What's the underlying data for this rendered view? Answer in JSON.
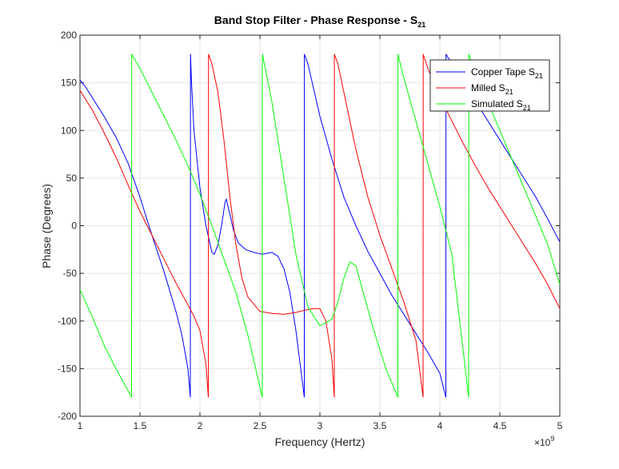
{
  "chart_data": {
    "type": "line",
    "title": "Band Stop Filter - Phase Response - S",
    "title_subscript": "21",
    "xlabel": "Frequency (Hertz)",
    "ylabel": "Phase (Degrees)",
    "x_exponent_base": "×10",
    "x_exponent_power": "9",
    "xlim": [
      1,
      5
    ],
    "ylim": [
      -200,
      200
    ],
    "xticks": [
      1,
      1.5,
      2,
      2.5,
      3,
      3.5,
      4,
      4.5,
      5
    ],
    "xtick_labels": [
      "1",
      "1.5",
      "2",
      "2.5",
      "3",
      "3.5",
      "4",
      "4.5",
      "5"
    ],
    "yticks": [
      -200,
      -150,
      -100,
      -50,
      0,
      50,
      100,
      150,
      200
    ],
    "ytick_labels": [
      "-200",
      "-150",
      "-100",
      "-50",
      "0",
      "50",
      "100",
      "150",
      "200"
    ],
    "grid": true,
    "legend_position": "top-right",
    "x_units_note": "frequency in units of 1e9 Hz",
    "series": [
      {
        "name": "Copper Tape S",
        "name_subscript": "21",
        "color": "#0000ff",
        "x": [
          1.0,
          1.05,
          1.1,
          1.2,
          1.3,
          1.4,
          1.5,
          1.6,
          1.7,
          1.8,
          1.85,
          1.9,
          1.92,
          1.921,
          1.93,
          1.95,
          2.0,
          2.05,
          2.1,
          2.12,
          2.15,
          2.18,
          2.21,
          2.22,
          2.23,
          2.25,
          2.28,
          2.32,
          2.38,
          2.45,
          2.52,
          2.6,
          2.65,
          2.7,
          2.75,
          2.8,
          2.85,
          2.87,
          2.871,
          2.9,
          3.0,
          3.1,
          3.2,
          3.3,
          3.4,
          3.5,
          3.6,
          3.7,
          3.8,
          3.9,
          4.0,
          4.05,
          4.051,
          4.1,
          4.2,
          4.3,
          4.4,
          4.5,
          4.6,
          4.7,
          4.8,
          4.9,
          5.0
        ],
        "y": [
          153,
          145,
          135,
          115,
          93,
          66,
          30,
          -10,
          -48,
          -90,
          -115,
          -150,
          -180,
          180,
          150,
          100,
          40,
          0,
          -28,
          -30,
          -20,
          0,
          25,
          28,
          22,
          12,
          -5,
          -18,
          -25,
          -28,
          -30,
          -28,
          -32,
          -45,
          -70,
          -110,
          -160,
          -180,
          180,
          170,
          115,
          70,
          30,
          0,
          -27,
          -50,
          -73,
          -93,
          -113,
          -133,
          -155,
          -180,
          180,
          170,
          150,
          130,
          110,
          90,
          70,
          50,
          30,
          7,
          -17
        ]
      },
      {
        "name": "Milled S",
        "name_subscript": "21",
        "color": "#ff0000",
        "x": [
          1.0,
          1.1,
          1.2,
          1.3,
          1.4,
          1.5,
          1.6,
          1.7,
          1.8,
          1.9,
          1.95,
          2.0,
          2.05,
          2.07,
          2.071,
          2.1,
          2.15,
          2.2,
          2.25,
          2.3,
          2.35,
          2.4,
          2.5,
          2.6,
          2.7,
          2.8,
          2.9,
          2.95,
          3.0,
          3.05,
          3.1,
          3.12,
          3.121,
          3.15,
          3.2,
          3.3,
          3.4,
          3.5,
          3.6,
          3.7,
          3.8,
          3.86,
          3.861,
          3.9,
          4.0,
          4.1,
          4.2,
          4.3,
          4.4,
          4.5,
          4.6,
          4.7,
          4.8,
          4.9,
          5.0
        ],
        "y": [
          142,
          122,
          98,
          72,
          43,
          15,
          -10,
          -35,
          -60,
          -83,
          -95,
          -110,
          -145,
          -180,
          180,
          170,
          140,
          90,
          30,
          -20,
          -55,
          -75,
          -90,
          -92,
          -93,
          -91,
          -88,
          -87,
          -87,
          -100,
          -140,
          -180,
          180,
          170,
          140,
          80,
          30,
          -10,
          -45,
          -80,
          -120,
          -180,
          180,
          165,
          135,
          110,
          85,
          62,
          40,
          20,
          0,
          -20,
          -40,
          -62,
          -87
        ]
      },
      {
        "name": "Simulated S",
        "name_subscript": "21",
        "color": "#00ff00",
        "x": [
          1.0,
          1.1,
          1.2,
          1.3,
          1.43,
          1.431,
          1.5,
          1.6,
          1.7,
          1.8,
          1.9,
          2.0,
          2.1,
          2.2,
          2.3,
          2.4,
          2.52,
          2.521,
          2.6,
          2.7,
          2.8,
          2.9,
          3.0,
          3.1,
          3.15,
          3.2,
          3.25,
          3.3,
          3.35,
          3.45,
          3.55,
          3.65,
          3.651,
          3.7,
          3.8,
          3.9,
          4.0,
          4.1,
          4.24,
          4.241,
          4.3,
          4.4,
          4.5,
          4.6,
          4.7,
          4.8,
          4.9,
          5.0
        ],
        "y": [
          -67,
          -95,
          -125,
          -150,
          -180,
          180,
          165,
          140,
          115,
          90,
          63,
          33,
          0,
          -35,
          -70,
          -115,
          -180,
          180,
          130,
          50,
          -30,
          -85,
          -105,
          -98,
          -80,
          -55,
          -38,
          -42,
          -65,
          -110,
          -150,
          -180,
          180,
          155,
          110,
          65,
          20,
          -30,
          -180,
          180,
          160,
          130,
          100,
          70,
          40,
          10,
          -20,
          -62
        ]
      }
    ]
  }
}
